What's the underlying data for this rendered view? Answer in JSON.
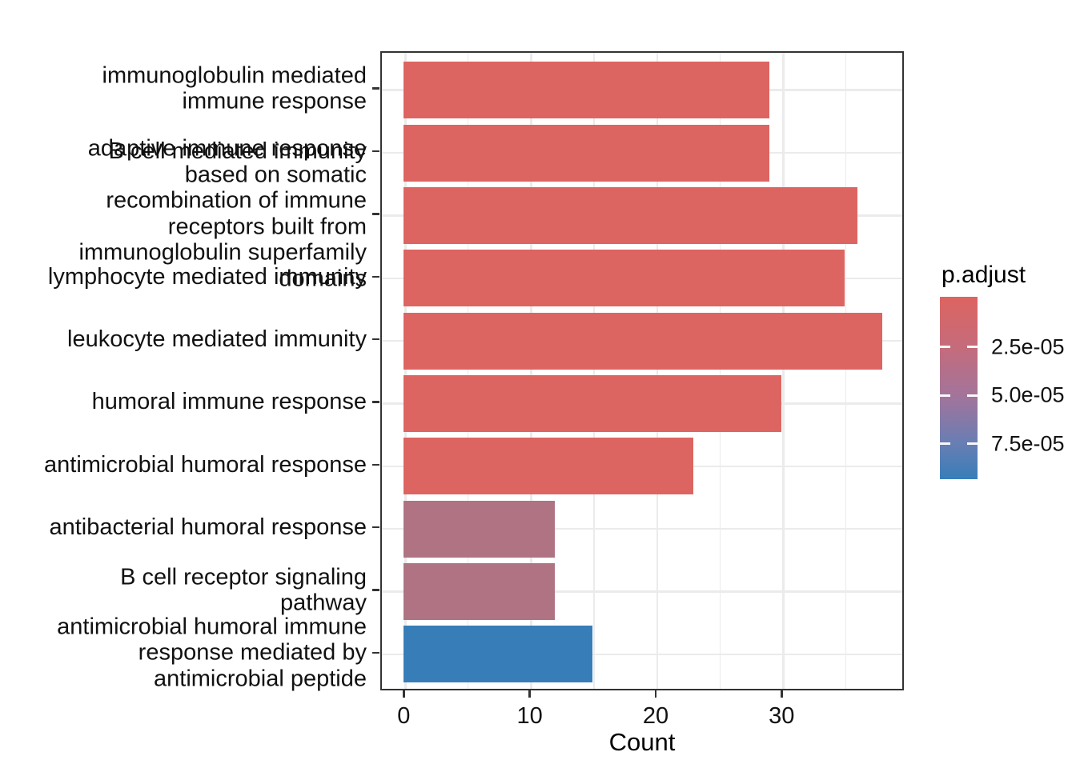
{
  "chart_data": {
    "type": "bar",
    "orientation": "horizontal",
    "xlabel": "Count",
    "x_major_ticks": [
      0,
      10,
      20,
      30
    ],
    "x_minor_ticks": [
      5,
      15,
      25,
      35
    ],
    "xlim": [
      -1.9,
      39.7
    ],
    "grid": true,
    "categories": [
      {
        "label": "immunoglobulin mediated immune response",
        "lines": [
          "immunoglobulin mediated",
          "immune response"
        ]
      },
      {
        "label": "B cell mediated immunity",
        "lines": [
          "B cell mediated immunity"
        ]
      },
      {
        "label": "adaptive immune response based on somatic recombination of immune receptors built from immunoglobulin superfamily domains",
        "lines": [
          "adaptive immune response",
          "based on somatic",
          "recombination of immune",
          "receptors built from",
          "immunoglobulin superfamily",
          "domains"
        ]
      },
      {
        "label": "lymphocyte mediated immunity",
        "lines": [
          "lymphocyte mediated immunity"
        ]
      },
      {
        "label": "leukocyte mediated immunity",
        "lines": [
          "leukocyte mediated immunity"
        ]
      },
      {
        "label": "humoral immune response",
        "lines": [
          "humoral immune response"
        ]
      },
      {
        "label": "antimicrobial humoral response",
        "lines": [
          "antimicrobial humoral response"
        ]
      },
      {
        "label": "antibacterial humoral response",
        "lines": [
          "antibacterial humoral response"
        ]
      },
      {
        "label": "B cell receptor signaling pathway",
        "lines": [
          "B cell receptor signaling",
          "pathway"
        ]
      },
      {
        "label": "antimicrobial humoral immune response mediated by antimicrobial peptide",
        "lines": [
          "antimicrobial humoral immune",
          "response mediated by",
          "antimicrobial peptide"
        ]
      }
    ],
    "values": [
      29,
      29,
      36,
      35,
      38,
      30,
      23,
      12,
      12,
      15
    ],
    "bar_colors": [
      "#DD6561",
      "#DD6561",
      "#DD6561",
      "#DD6561",
      "#DD6561",
      "#DD6561",
      "#DD6561",
      "#AF7384",
      "#AF7384",
      "#377EB8"
    ],
    "legend": {
      "title": "p.adjust",
      "tick_labels": [
        "2.5e-05",
        "5.0e-05",
        "7.5e-05"
      ],
      "tick_positions": [
        0.275,
        0.54,
        0.805
      ],
      "gradient": [
        {
          "pos": 0.0,
          "color": "#DD6460"
        },
        {
          "pos": 0.275,
          "color": "#C56B7B"
        },
        {
          "pos": 0.54,
          "color": "#A3749A"
        },
        {
          "pos": 0.805,
          "color": "#687EB4"
        },
        {
          "pos": 1.0,
          "color": "#377EB8"
        }
      ]
    },
    "colors": {
      "grid": "#ebebeb",
      "panel_border": "#333333",
      "tick": "#333333",
      "text": "#111111"
    }
  }
}
